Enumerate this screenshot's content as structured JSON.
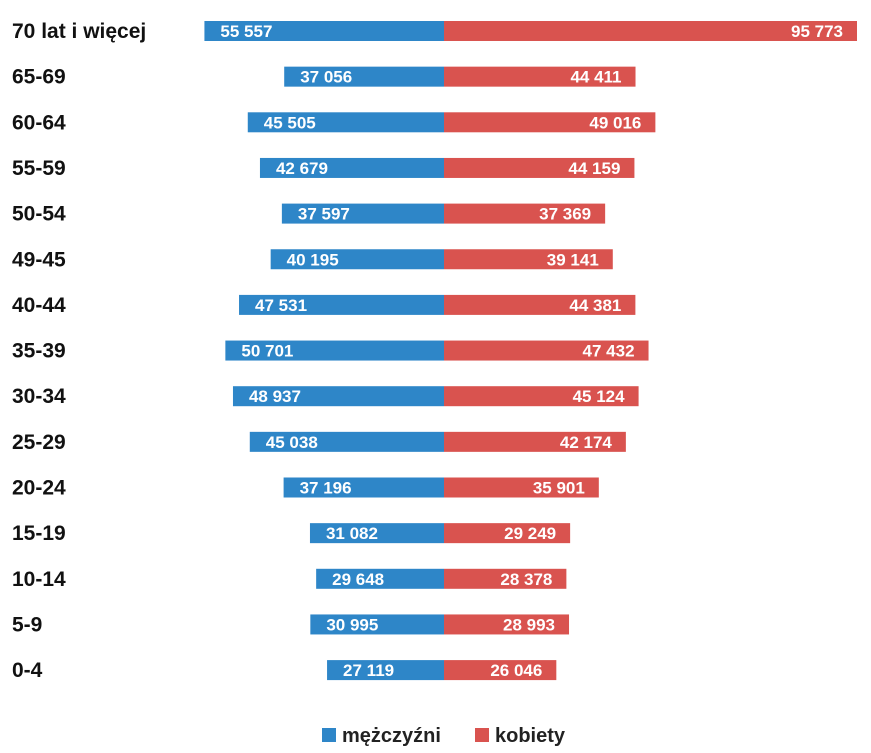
{
  "chart_data": {
    "type": "bar",
    "orientation": "horizontal-diverging",
    "categories": [
      "70 lat i więcej",
      "65-69",
      "60-64",
      "55-59",
      "50-54",
      "49-45",
      "40-44",
      "35-39",
      "30-34",
      "25-29",
      "20-24",
      "15-19",
      "10-14",
      "5-9",
      "0-4"
    ],
    "series": [
      {
        "name": "mężczyźni",
        "color": "#2e86c8",
        "values": [
          55557,
          37056,
          45505,
          42679,
          37597,
          40195,
          47531,
          50701,
          48937,
          45038,
          37196,
          31082,
          29648,
          30995,
          27119
        ],
        "labels": [
          "55 557",
          "37 056",
          "45 505",
          "42 679",
          "37 597",
          "40 195",
          "47 531",
          "50 701",
          "48 937",
          "45 038",
          "37 196",
          "31 082",
          "29 648",
          "30 995",
          "27 119"
        ]
      },
      {
        "name": "kobiety",
        "color": "#d9534f",
        "values": [
          95773,
          44411,
          49016,
          44159,
          37369,
          39141,
          44381,
          47432,
          45124,
          42174,
          35901,
          29249,
          28378,
          28993,
          26046
        ],
        "labels": [
          "95 773",
          "44 411",
          "49 016",
          "44 159",
          "37 369",
          "39 141",
          "44 381",
          "47 432",
          "45 124",
          "42 174",
          "35 901",
          "29 249",
          "28 378",
          "28 993",
          "26 046"
        ]
      }
    ],
    "legend": {
      "position": "bottom-center"
    },
    "grid": false
  }
}
